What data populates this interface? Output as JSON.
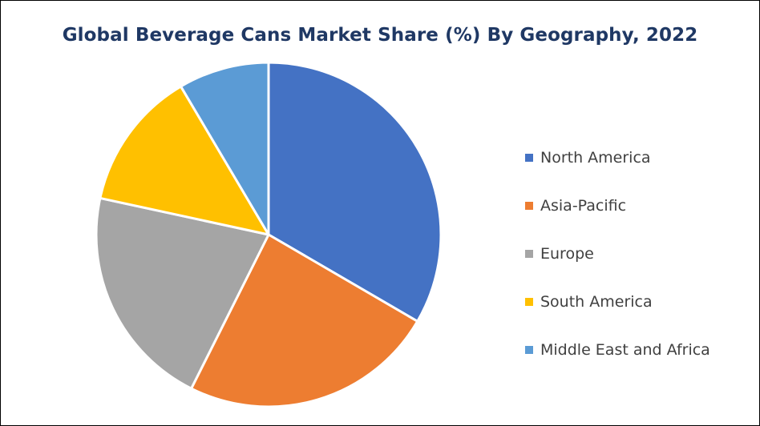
{
  "chart_data": {
    "type": "pie",
    "title": "Global Beverage Cans Market Share (%) By Geography, 2022",
    "legend_position": "right",
    "slices": [
      {
        "label": "North America",
        "value": 33.4,
        "color": "#4472c4"
      },
      {
        "label": "Asia-Pacific",
        "value": 24.0,
        "color": "#ed7d31"
      },
      {
        "label": "Europe",
        "value": 21.0,
        "color": "#a5a5a5"
      },
      {
        "label": "South America",
        "value": 13.1,
        "color": "#ffc000"
      },
      {
        "label": "Middle East and Africa",
        "value": 8.5,
        "color": "#5b9bd5"
      }
    ]
  }
}
